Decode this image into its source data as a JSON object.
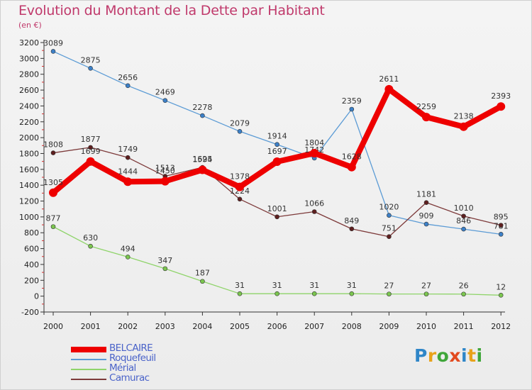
{
  "title": "Evolution du Montant de la Dette par Habitant",
  "unit": "(en €)",
  "brand": {
    "letters": [
      "P",
      "r",
      "o",
      "x",
      "i",
      "t",
      "i"
    ],
    "colors": [
      "#2f86c8",
      "#e8a21a",
      "#3fa63a",
      "#e24a1f",
      "#2f86c8",
      "#e8a21a",
      "#3fa63a"
    ]
  },
  "chart_data": {
    "type": "line",
    "categories": [
      "2000",
      "2001",
      "2002",
      "2003",
      "2004",
      "2005",
      "2006",
      "2007",
      "2008",
      "2009",
      "2010",
      "2011",
      "2012"
    ],
    "ylim": [
      -200,
      3200
    ],
    "y_ticks": [
      -200,
      0,
      200,
      400,
      600,
      800,
      1000,
      1200,
      1400,
      1600,
      1800,
      2000,
      2200,
      2400,
      2600,
      2800,
      3000,
      3200
    ],
    "grid": false,
    "legend_position": "bottom-left",
    "series": [
      {
        "name": "Roquefeuil",
        "color": "#5b9bd5",
        "marker": "#3c80c8",
        "values": [
          3089,
          2875,
          2656,
          2469,
          2278,
          2079,
          1914,
          1742,
          2359,
          1020,
          909,
          846,
          781
        ]
      },
      {
        "name": "Mérial",
        "color": "#8fd46a",
        "marker": "#7bc64f",
        "values": [
          877,
          630,
          494,
          347,
          187,
          31,
          31,
          31,
          31,
          27,
          27,
          26,
          12
        ]
      },
      {
        "name": "Camurac",
        "color": "#7d3a3a",
        "marker": "#5e1f1f",
        "values": [
          1808,
          1877,
          1749,
          1513,
          1625,
          1224,
          1001,
          1066,
          849,
          751,
          1181,
          1010,
          895
        ]
      },
      {
        "name": "BELCAIRE",
        "color": "#ee0000",
        "marker": "#ee0000",
        "values": [
          1305,
          1699,
          1444,
          1450,
          1594,
          1378,
          1697,
          1804,
          1628,
          2611,
          2259,
          2138,
          2393
        ]
      }
    ],
    "legend": [
      "BELCAIRE",
      "Roquefeuil",
      "Mérial",
      "Camurac"
    ]
  }
}
